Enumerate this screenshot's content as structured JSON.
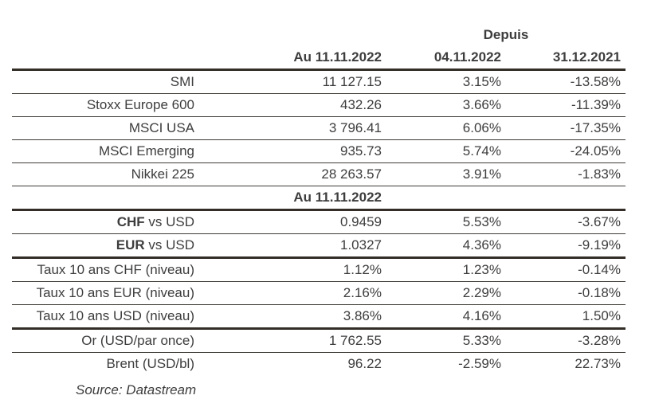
{
  "colors": {
    "background": "#ffffff",
    "text": "#3d3d3d",
    "rule_thin": "#3f3b36",
    "rule_thick": "#322d27"
  },
  "table": {
    "header": {
      "depuis": "Depuis",
      "value_col": "Au 11.11.2022",
      "since_col_1": "04.11.2022",
      "since_col_2": "31.12.2021"
    },
    "rows": [
      {
        "type": "data",
        "label": "SMI",
        "value": "11 127.15",
        "since_04_11": "3.15%",
        "since_31_12": "-13.58%",
        "rule": "thin"
      },
      {
        "type": "data",
        "label": "Stoxx Europe 600",
        "value": "432.26",
        "since_04_11": "3.66%",
        "since_31_12": "-11.39%",
        "rule": "thin"
      },
      {
        "type": "data",
        "label": "MSCI USA",
        "value": "3 796.41",
        "since_04_11": "6.06%",
        "since_31_12": "-17.35%",
        "rule": "thin"
      },
      {
        "type": "data",
        "label": "MSCI Emerging",
        "value": "935.73",
        "since_04_11": "5.74%",
        "since_31_12": "-24.05%",
        "rule": "thin"
      },
      {
        "type": "data",
        "label": "Nikkei 225",
        "value": "28 263.57",
        "since_04_11": "3.91%",
        "since_31_12": "-1.83%",
        "rule": "thin"
      },
      {
        "type": "subheader",
        "label": "Au 11.11.2022",
        "rule": "thick"
      },
      {
        "type": "data",
        "label_bold": "CHF",
        "label": " vs USD",
        "value": "0.9459",
        "since_04_11": "5.53%",
        "since_31_12": "-3.67%",
        "rule": "thin"
      },
      {
        "type": "data",
        "label_bold": "EUR",
        "label": " vs USD",
        "value": "1.0327",
        "since_04_11": "4.36%",
        "since_31_12": "-9.19%",
        "rule": "thick"
      },
      {
        "type": "data",
        "label": "Taux 10 ans CHF (niveau)",
        "value": "1.12%",
        "since_04_11": "1.23%",
        "since_31_12": "-0.14%",
        "rule": "thin"
      },
      {
        "type": "data",
        "label": "Taux 10 ans EUR (niveau)",
        "value": "2.16%",
        "since_04_11": "2.29%",
        "since_31_12": "-0.18%",
        "rule": "thin"
      },
      {
        "type": "data",
        "label": "Taux 10 ans USD (niveau)",
        "value": "3.86%",
        "since_04_11": "4.16%",
        "since_31_12": "1.50%",
        "rule": "thick"
      },
      {
        "type": "data",
        "label": "Or (USD/par once)",
        "value": "1 762.55",
        "since_04_11": "5.33%",
        "since_31_12": "-3.28%",
        "rule": "thin"
      },
      {
        "type": "data",
        "label": "Brent (USD/bl)",
        "value": "96.22",
        "since_04_11": "-2.59%",
        "since_31_12": "22.73%",
        "rule": "none"
      }
    ]
  },
  "footer": {
    "source": "Source: Datastream"
  }
}
